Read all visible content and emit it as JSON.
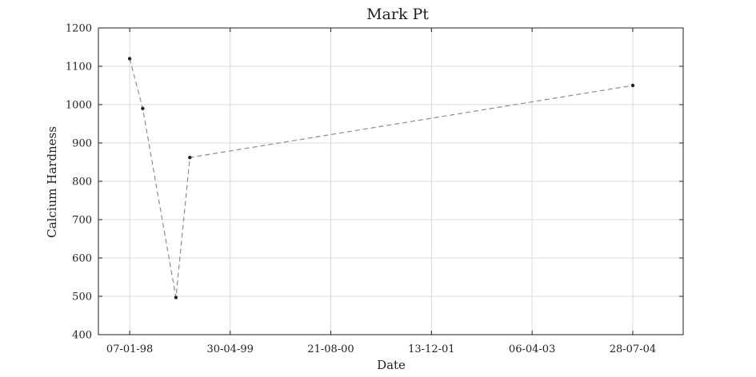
{
  "chart_data": {
    "type": "line",
    "title": "Mark Pt",
    "xlabel": "Date",
    "ylabel": "Calcium Hardness",
    "x_ticks": [
      "07-01-98",
      "30-04-99",
      "21-08-00",
      "13-12-01",
      "06-04-03",
      "28-07-04"
    ],
    "x_tick_dates": [
      "1998-01-07",
      "1999-04-30",
      "2000-08-21",
      "2001-12-13",
      "2003-04-06",
      "2004-07-28"
    ],
    "xlim": [
      "1997-08-11",
      "2005-03-25"
    ],
    "y_ticks": [
      400,
      500,
      600,
      700,
      800,
      900,
      1000,
      1100,
      1200
    ],
    "ylim": [
      400,
      1200
    ],
    "grid": true,
    "series": [
      {
        "color": "#8c8c8c",
        "marker_color": "#222222",
        "points": [
          {
            "x": "1998-01-07",
            "y": 1120
          },
          {
            "x": "1998-03-10",
            "y": 990
          },
          {
            "x": "1998-08-15",
            "y": 497
          },
          {
            "x": "1998-10-20",
            "y": 862
          },
          {
            "x": "2004-07-28",
            "y": 1050
          }
        ]
      }
    ]
  }
}
